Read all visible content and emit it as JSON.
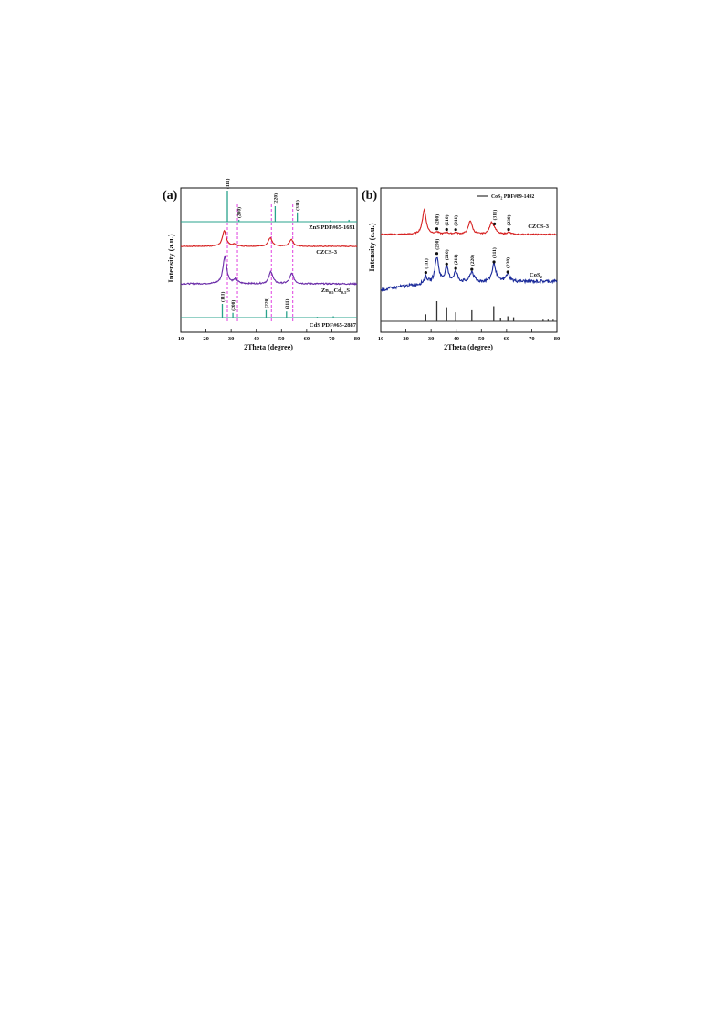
{
  "colors": {
    "green": "#2aa38c",
    "red": "#d62020",
    "purple": "#6a2ca8",
    "navy": "#1a2a9a",
    "magenta": "#e040e0",
    "gray": "#333333"
  },
  "chart_data": [
    {
      "type": "line",
      "panel_label": "(a)",
      "xlabel": "2Theta (degree)",
      "ylabel": "Intensity (a.u.)",
      "xlim": [
        10,
        80
      ],
      "xticks": [
        "10",
        "20",
        "30",
        "40",
        "50",
        "60",
        "70",
        "80"
      ],
      "grid": false,
      "reference_lines_2theta": [
        28.5,
        32.5,
        46.0,
        54.5
      ],
      "series": [
        {
          "name": "ZnS PDF#65-1691",
          "kind": "sticks",
          "color": "green",
          "x": [
            28.5,
            33.1,
            47.5,
            56.3,
            69.4,
            76.8
          ],
          "values": [
            1.0,
            0.06,
            0.5,
            0.3,
            0.04,
            0.06
          ]
        },
        {
          "name": "CZCS-3",
          "kind": "pattern",
          "color": "red",
          "peaks": [
            [
              27.3,
              1.0
            ],
            [
              31.4,
              0.12
            ],
            [
              45.5,
              0.55
            ],
            [
              53.9,
              0.45
            ]
          ]
        },
        {
          "name": "Zn0.5Cd0.5S",
          "kind": "pattern",
          "color": "purple",
          "peaks": [
            [
              27.5,
              1.0
            ],
            [
              31.8,
              0.15
            ],
            [
              45.8,
              0.45
            ],
            [
              54.1,
              0.38
            ]
          ]
        },
        {
          "name": "CdS PDF#65-2887",
          "kind": "sticks",
          "color": "green",
          "x": [
            26.5,
            30.7,
            43.9,
            52.0,
            64.2,
            70.6
          ],
          "values": [
            1.0,
            0.35,
            0.55,
            0.45,
            0.06,
            0.1
          ]
        }
      ],
      "annotations": [
        {
          "text": "(111)",
          "x": 28.5,
          "trace": 0
        },
        {
          "text": "(200)",
          "x": 33.1,
          "trace": 0
        },
        {
          "text": "(220)",
          "x": 47.5,
          "trace": 0
        },
        {
          "text": "(311)",
          "x": 56.3,
          "trace": 0
        },
        {
          "text": "(111)",
          "x": 26.5,
          "trace": 3
        },
        {
          "text": "(200)",
          "x": 30.7,
          "trace": 3
        },
        {
          "text": "(220)",
          "x": 43.9,
          "trace": 3
        },
        {
          "text": "(311)",
          "x": 52.0,
          "trace": 3
        }
      ]
    },
    {
      "type": "line",
      "panel_label": "(b)",
      "xlabel": "2Theta (degree)",
      "ylabel": "Intensity (a.u.)",
      "xlim": [
        10,
        80
      ],
      "xticks": [
        "10",
        "20",
        "30",
        "40",
        "50",
        "60",
        "70",
        "80"
      ],
      "grid": false,
      "legend": {
        "position": "top-right",
        "entry": "CoS2 PDF#89-1492"
      },
      "series": [
        {
          "name": "CZCS-3",
          "kind": "pattern",
          "color": "red",
          "peaks": [
            [
              27.3,
              1.0
            ],
            [
              32.3,
              0.08
            ],
            [
              36.2,
              0.07
            ],
            [
              39.8,
              0.06
            ],
            [
              45.6,
              0.55
            ],
            [
              54.0,
              0.45
            ],
            [
              55.2,
              0.15
            ],
            [
              60.8,
              0.08
            ]
          ]
        },
        {
          "name": "CoS2",
          "kind": "pattern",
          "color": "navy",
          "peaks": [
            [
              27.9,
              0.25
            ],
            [
              32.3,
              1.0
            ],
            [
              36.2,
              0.55
            ],
            [
              39.8,
              0.4
            ],
            [
              46.2,
              0.4
            ],
            [
              55.0,
              0.7
            ],
            [
              60.5,
              0.3
            ]
          ]
        },
        {
          "name": "CoS2 PDF#89-1492",
          "kind": "sticks",
          "color": "gray",
          "x": [
            27.9,
            32.3,
            36.2,
            39.8,
            46.2,
            54.9,
            57.6,
            60.5,
            62.8,
            74.5,
            76.5,
            78.5
          ],
          "values": [
            0.35,
            1.0,
            0.7,
            0.45,
            0.55,
            0.75,
            0.15,
            0.25,
            0.2,
            0.08,
            0.08,
            0.08
          ]
        }
      ],
      "annotations": [
        {
          "text": "(200)",
          "x": 32.3,
          "trace": 0
        },
        {
          "text": "(210)",
          "x": 36.2,
          "trace": 0
        },
        {
          "text": "(211)",
          "x": 39.8,
          "trace": 0
        },
        {
          "text": "(311)",
          "x": 55.2,
          "trace": 0
        },
        {
          "text": "(230)",
          "x": 60.8,
          "trace": 0
        },
        {
          "text": "(111)",
          "x": 27.9,
          "trace": 1
        },
        {
          "text": "(200)",
          "x": 32.3,
          "trace": 1
        },
        {
          "text": "(210)",
          "x": 36.2,
          "trace": 1
        },
        {
          "text": "(211)",
          "x": 39.8,
          "trace": 1
        },
        {
          "text": "(220)",
          "x": 46.2,
          "trace": 1
        },
        {
          "text": "(311)",
          "x": 55.0,
          "trace": 1
        },
        {
          "text": "(230)",
          "x": 60.5,
          "trace": 1
        }
      ]
    }
  ]
}
